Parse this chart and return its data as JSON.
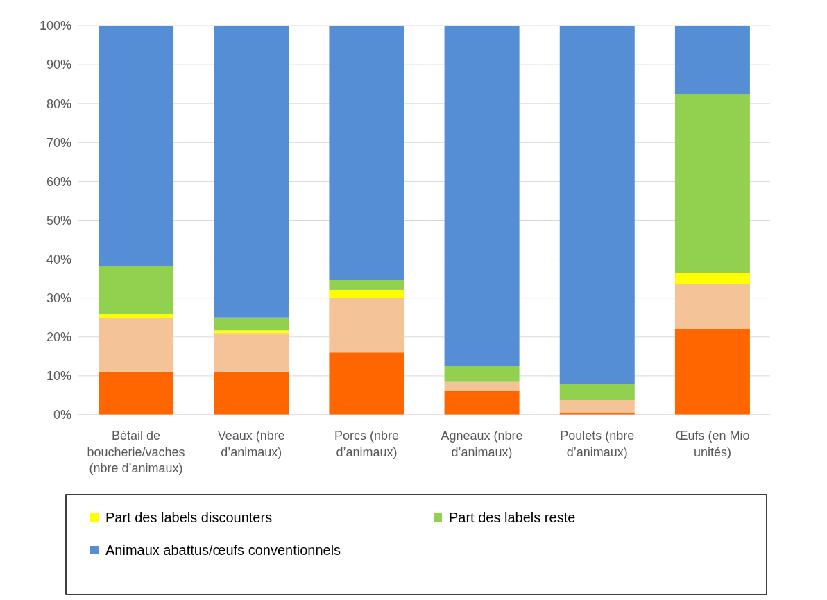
{
  "chart_data": {
    "type": "bar",
    "stacked": true,
    "categories": [
      "Bétail de boucherie/vaches (nbre d’animaux)",
      "Veaux (nbre d’animaux)",
      "Porcs (nbre d’animaux)",
      "Agneaux (nbre d’animaux)",
      "Poulets (nbre d’animaux)",
      "Œufs (en Mio unités)"
    ],
    "series": [
      {
        "color": "#ff6600",
        "values": [
          11,
          11.1,
          16,
          6.2,
          0.5,
          22.1
        ]
      },
      {
        "color": "#f4c498",
        "values": [
          13.8,
          9.9,
          14,
          2.4,
          3.4,
          11.6
        ]
      },
      {
        "name": "Part des labels discounters",
        "color": "#ffff00",
        "values": [
          1.2,
          0.7,
          2.1,
          0,
          0,
          2.8
        ]
      },
      {
        "name": "Part des labels reste",
        "color": "#92d050",
        "values": [
          12.3,
          3.3,
          2.5,
          3.9,
          4.1,
          46
        ]
      },
      {
        "name": "Animaux abattus/œufs conventionnels",
        "color": "#558ed5",
        "values": [
          61.7,
          75,
          65.4,
          87.5,
          92,
          17.5
        ]
      }
    ],
    "ylim": [
      0,
      100
    ],
    "yticks": [
      {
        "value": 0,
        "label": "0%"
      },
      {
        "value": 10,
        "label": "10%"
      },
      {
        "value": 20,
        "label": "20%"
      },
      {
        "value": 30,
        "label": "30%"
      },
      {
        "value": 40,
        "label": "40%"
      },
      {
        "value": 50,
        "label": "50%"
      },
      {
        "value": 60,
        "label": "60%"
      },
      {
        "value": 70,
        "label": "70%"
      },
      {
        "value": 80,
        "label": "80%"
      },
      {
        "value": 90,
        "label": "90%"
      },
      {
        "value": 100,
        "label": "100%"
      }
    ],
    "grid": "y",
    "legend": "bottom"
  }
}
